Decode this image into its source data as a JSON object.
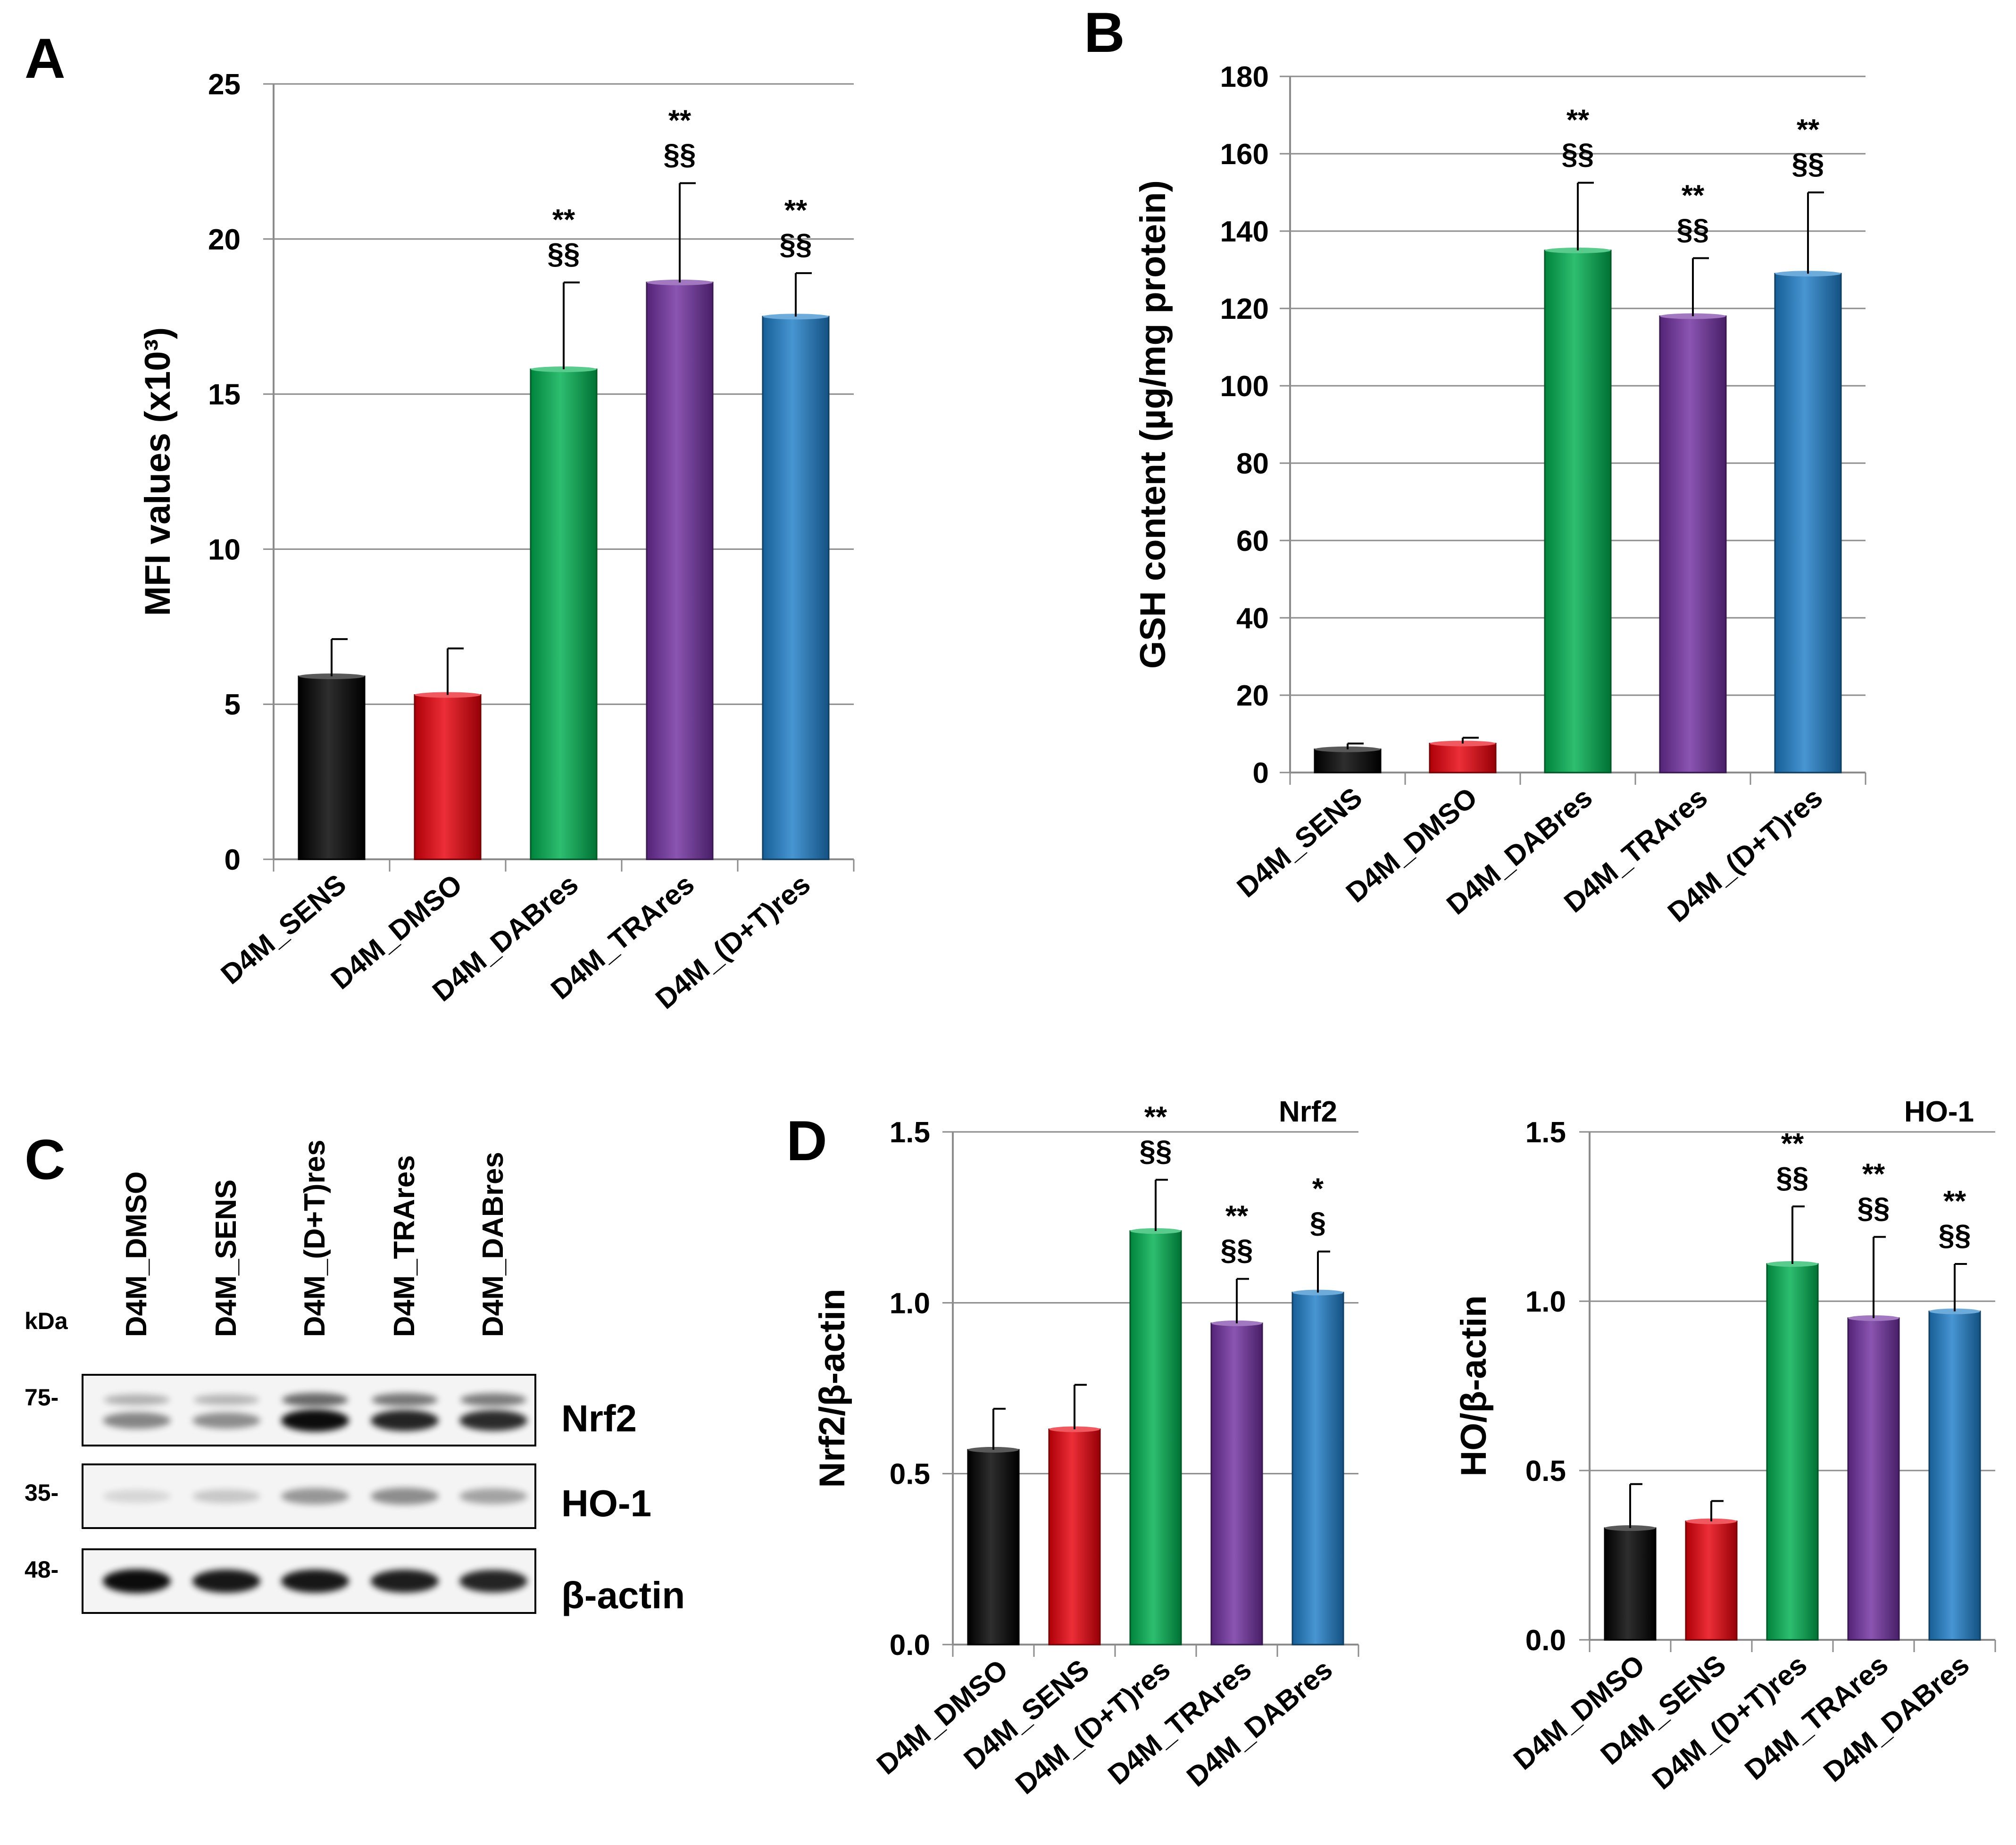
{
  "chart_data": [
    {
      "panel": "A",
      "type": "bar",
      "title": "",
      "xlabel": "",
      "ylabel": "MFI  values (x10³)",
      "ylim": [
        0,
        25
      ],
      "yticks": [
        0,
        5,
        10,
        15,
        20,
        25
      ],
      "ytick_labels": [
        "0",
        "5",
        "10",
        "15",
        "20",
        "25"
      ],
      "grid": true,
      "categories": [
        "D4M_SENS",
        "D4M_DMSO",
        "D4M_DABres",
        "D4M_TRAres",
        "D4M_(D+T)res"
      ],
      "values": [
        5.9,
        5.3,
        15.8,
        18.6,
        17.5
      ],
      "errors": [
        1.2,
        1.5,
        2.8,
        3.2,
        1.4
      ],
      "colors": [
        "#000000",
        "#e8000b",
        "#00b050",
        "#7030a0",
        "#1f7ec8"
      ],
      "annotations": [
        [
          "",
          ""
        ],
        [
          "",
          ""
        ],
        [
          "**",
          "§§"
        ],
        [
          "**",
          "§§"
        ],
        [
          "**",
          "§§"
        ]
      ]
    },
    {
      "panel": "B",
      "type": "bar",
      "title": "",
      "xlabel": "",
      "ylabel": "GSH content (µg/mg protein)",
      "ylim": [
        0,
        180
      ],
      "yticks": [
        0,
        20,
        40,
        60,
        80,
        100,
        120,
        140,
        160,
        180
      ],
      "ytick_labels": [
        "0",
        "20",
        "40",
        "60",
        "80",
        "100",
        "120",
        "140",
        "160",
        "180"
      ],
      "grid": true,
      "categories": [
        "D4M_SENS",
        "D4M_DMSO",
        "D4M_DABres",
        "D4M_TRAres",
        "D4M_(D+T)res"
      ],
      "values": [
        6,
        7.5,
        135,
        118,
        129
      ],
      "errors": [
        1.5,
        1.5,
        17.5,
        15,
        21
      ],
      "colors": [
        "#000000",
        "#e8000b",
        "#00b050",
        "#7030a0",
        "#1f7ec8"
      ],
      "annotations": [
        [
          "",
          ""
        ],
        [
          "",
          ""
        ],
        [
          "**",
          "§§"
        ],
        [
          "**",
          "§§"
        ],
        [
          "**",
          "§§"
        ]
      ]
    },
    {
      "panel": "D",
      "type": "bar",
      "title": "Nrf2",
      "xlabel": "",
      "ylabel": "Nrf2/β-actin",
      "ylim": [
        0,
        1.5
      ],
      "yticks": [
        0,
        0.5,
        1.0,
        1.5
      ],
      "ytick_labels": [
        "0.0",
        "0.5",
        "1.0",
        "1.5"
      ],
      "grid": true,
      "categories": [
        "D4M_DMSO",
        "D4M_SENS",
        "D4M_(D+T)res",
        "D4M_TRAres",
        "D4M_DABres"
      ],
      "values": [
        0.57,
        0.63,
        1.21,
        0.94,
        1.03
      ],
      "errors": [
        0.12,
        0.13,
        0.15,
        0.13,
        0.12
      ],
      "colors": [
        "#000000",
        "#e8000b",
        "#00b050",
        "#7030a0",
        "#1f7ec8"
      ],
      "annotations": [
        [
          "",
          ""
        ],
        [
          "",
          ""
        ],
        [
          "**",
          "§§"
        ],
        [
          "**",
          "§§"
        ],
        [
          "*",
          "§"
        ]
      ]
    },
    {
      "panel": "",
      "type": "bar",
      "title": "HO-1",
      "xlabel": "",
      "ylabel": "HO/β-actin",
      "ylim": [
        0,
        1.5
      ],
      "yticks": [
        0,
        0.5,
        1.0,
        1.5
      ],
      "ytick_labels": [
        "0.0",
        "0.5",
        "1.0",
        "1.5"
      ],
      "grid": true,
      "categories": [
        "D4M_DMSO",
        "D4M_SENS",
        "D4M_(D+T)res",
        "D4M_TRAres",
        "D4M_DABres"
      ],
      "values": [
        0.33,
        0.35,
        1.11,
        0.95,
        0.97
      ],
      "errors": [
        0.13,
        0.06,
        0.17,
        0.24,
        0.14
      ],
      "colors": [
        "#000000",
        "#e8000b",
        "#00b050",
        "#7030a0",
        "#1f7ec8"
      ],
      "annotations": [
        [
          "",
          ""
        ],
        [
          "",
          ""
        ],
        [
          "**",
          "§§"
        ],
        [
          "**",
          "§§"
        ],
        [
          "**",
          "§§"
        ]
      ]
    }
  ],
  "blot": {
    "panel": "C",
    "unit_label": "kDa",
    "lanes": [
      "D4M_DMSO",
      "D4M_SENS",
      "D4M_(D+T)res",
      "D4M_TRAres",
      "D4M_DABres"
    ],
    "rows": [
      {
        "label": "Nrf2",
        "marker": "75-",
        "band_intensity": [
          0.45,
          0.42,
          0.95,
          0.85,
          0.82
        ],
        "double_band": true
      },
      {
        "label": "HO-1",
        "marker": "35-",
        "band_intensity": [
          0.12,
          0.18,
          0.38,
          0.42,
          0.33
        ],
        "double_band": false
      },
      {
        "label": "β-actin",
        "marker": "48-",
        "band_intensity": [
          0.95,
          0.9,
          0.9,
          0.88,
          0.85
        ],
        "double_band": false
      }
    ]
  }
}
